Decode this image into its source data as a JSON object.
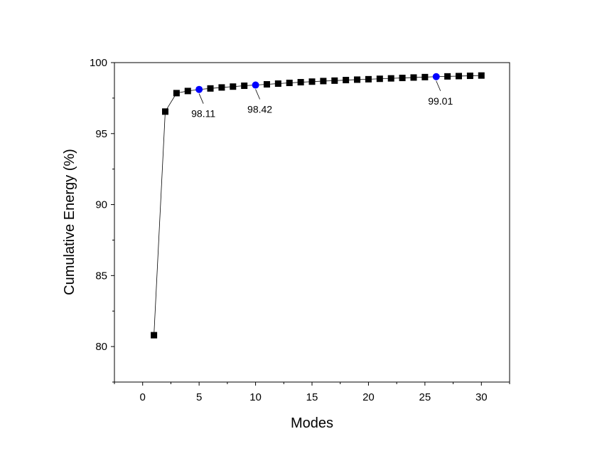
{
  "chart_data": {
    "type": "scatter",
    "title": "",
    "xlabel": "Modes",
    "ylabel": "Cumulative Energy (%)",
    "xlim": [
      -2.5,
      32.5
    ],
    "ylim": [
      77.5,
      100
    ],
    "xticks": [
      0,
      5,
      10,
      15,
      20,
      25,
      30
    ],
    "yticks": [
      80,
      85,
      90,
      95,
      100
    ],
    "grid": false,
    "legend": "none",
    "series": [
      {
        "marker": "square",
        "color": "#000000",
        "line": true,
        "x": [
          1,
          2,
          3,
          4,
          5,
          6,
          7,
          8,
          9,
          10,
          11,
          12,
          13,
          14,
          15,
          16,
          17,
          18,
          19,
          20,
          21,
          22,
          23,
          24,
          25,
          26,
          27,
          28,
          29,
          30
        ],
        "y": [
          80.8,
          96.55,
          97.85,
          98.0,
          98.11,
          98.18,
          98.25,
          98.31,
          98.37,
          98.42,
          98.47,
          98.52,
          98.57,
          98.62,
          98.66,
          98.7,
          98.73,
          98.77,
          98.8,
          98.83,
          98.86,
          98.89,
          98.92,
          98.95,
          98.98,
          99.01,
          99.03,
          99.05,
          99.07,
          99.09
        ]
      }
    ],
    "highlights": [
      {
        "x": 5,
        "y": 98.11,
        "label": "98.11",
        "color": "#0000ff"
      },
      {
        "x": 10,
        "y": 98.42,
        "label": "98.42",
        "color": "#0000ff"
      },
      {
        "x": 26,
        "y": 99.01,
        "label": "99.01",
        "color": "#0000ff"
      }
    ]
  }
}
